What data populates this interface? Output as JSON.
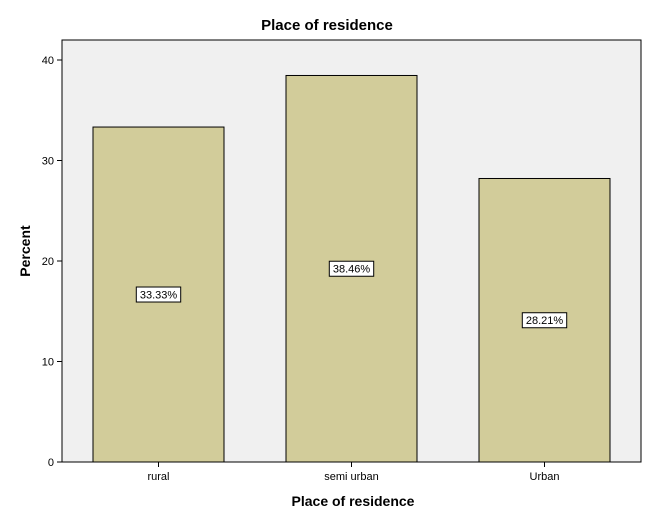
{
  "chart_data": {
    "type": "bar",
    "title": "Place of residence",
    "xlabel": "Place of residence",
    "ylabel": "Percent",
    "categories": [
      "rural",
      "semi urban",
      "Urban"
    ],
    "values": [
      33.33,
      38.46,
      28.21
    ],
    "data_labels": [
      "33.33%",
      "38.46%",
      "28.21%"
    ],
    "ylim": [
      0,
      42
    ],
    "yticks": [
      0,
      10,
      20,
      30,
      40
    ],
    "ytick_labels": [
      "0",
      "10",
      "20",
      "30",
      "40"
    ],
    "grid": false,
    "legend": "none",
    "colors": {
      "bar_fill": "#D2CC9A",
      "bar_stroke": "#000000",
      "plot_background": "#F0F0F0",
      "label_box_fill": "#FFFFFF"
    }
  }
}
